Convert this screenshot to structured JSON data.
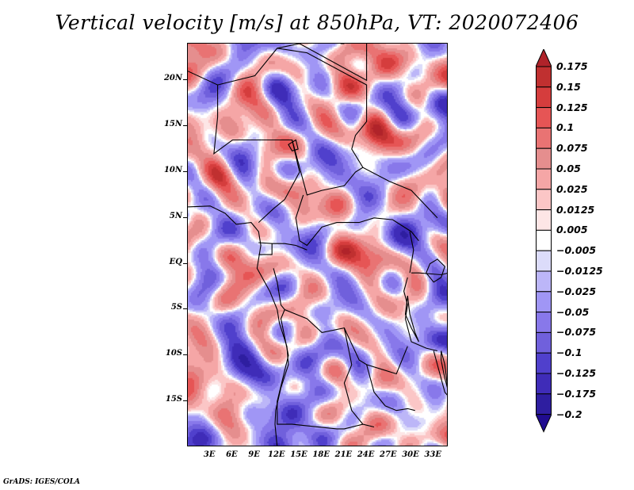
{
  "title": "Vertical velocity [m/s] at 850hPa, VT: 2020072406",
  "footer": "GrADS: IGES/COLA",
  "map": {
    "variable": "Vertical velocity",
    "units": "m/s",
    "level": "850hPa",
    "valid_time": "2020072406",
    "lon_range": [
      0,
      35
    ],
    "lat_range": [
      -20,
      24
    ],
    "y_axis_labels": [
      "20N",
      "15N",
      "10N",
      "5N",
      "EQ",
      "5S",
      "10S",
      "15S"
    ],
    "y_axis_values": [
      20,
      15,
      10,
      5,
      0,
      -5,
      -10,
      -15
    ],
    "x_axis_labels": [
      "3E",
      "6E",
      "9E",
      "12E",
      "15E",
      "18E",
      "21E",
      "24E",
      "27E",
      "30E",
      "33E"
    ],
    "x_axis_values": [
      3,
      6,
      9,
      12,
      15,
      18,
      21,
      24,
      27,
      30,
      33
    ]
  },
  "colorbar": {
    "labels": [
      "0.175",
      "0.15",
      "0.125",
      "0.1",
      "0.075",
      "0.05",
      "0.025",
      "0.0125",
      "0.005",
      "-0.005",
      "-0.0125",
      "-0.025",
      "-0.05",
      "-0.075",
      "-0.1",
      "-0.125",
      "-0.175",
      "-0.2"
    ],
    "colors": [
      "#b0232a",
      "#c03030",
      "#d53d3d",
      "#e65555",
      "#e97373",
      "#e58e8e",
      "#f5a6a6",
      "#fbc6c6",
      "#fde6e6",
      "#ffffff",
      "#dcdcfa",
      "#bcb6f8",
      "#a096f5",
      "#8878ea",
      "#7060dc",
      "#5040cc",
      "#3f2cb8",
      "#2e1ea0",
      "#200c90"
    ],
    "top_arrow_color": "#b0232a",
    "bottom_arrow_color": "#200c90"
  }
}
